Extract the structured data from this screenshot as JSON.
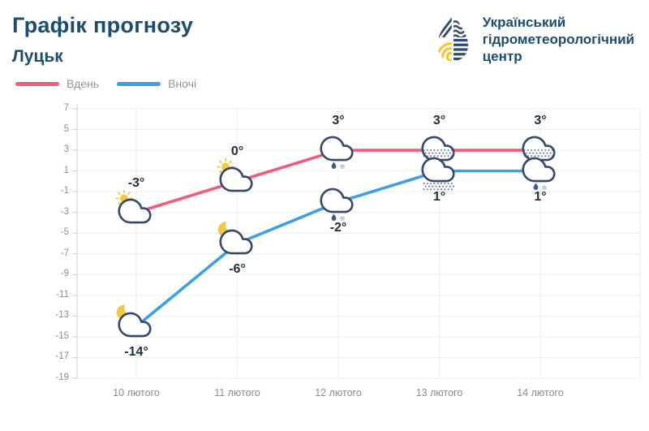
{
  "header": {
    "title": "Графік прогнозу",
    "city": "Луцьк"
  },
  "logo": {
    "org_lines": [
      "Український",
      "гідрометеорологічний",
      "центр"
    ]
  },
  "legend": {
    "items": [
      {
        "label": "Вдень",
        "color": "#f6597e"
      },
      {
        "label": "Вночі",
        "color": "#3d9fe6"
      }
    ]
  },
  "chart_data": {
    "type": "line",
    "title": "Графік прогнозу",
    "subtitle": "Луцьк",
    "categories": [
      "10 лютого",
      "11 лютого",
      "12 лютого",
      "13 лютого",
      "14 лютого"
    ],
    "series": [
      {
        "name": "Вдень",
        "color": "#f6597e",
        "values": [
          -3,
          0,
          3,
          3,
          3
        ],
        "labels": [
          "-3°",
          "0°",
          "3°",
          "3°",
          "3°"
        ],
        "icons": [
          "sun-cloud",
          "sun-cloud",
          "cloud-rain-snow",
          "cloud",
          "cloud"
        ]
      },
      {
        "name": "Вночі",
        "color": "#3d9fe6",
        "values": [
          -14,
          -6,
          -2,
          1,
          1
        ],
        "labels": [
          "-14°",
          "-6°",
          "-2°",
          "1°",
          "1°"
        ],
        "icons": [
          "moon-cloud",
          "moon-cloud",
          "cloud-rain-snow",
          "cloud-snow",
          "cloud-snow-rain"
        ]
      }
    ],
    "ylim": [
      -19,
      7
    ],
    "ytick_step": 2,
    "yticks": [
      7,
      5,
      3,
      1,
      -1,
      -3,
      -5,
      -7,
      -9,
      -11,
      -13,
      -15,
      -17,
      -19
    ],
    "grid": true,
    "legend_position": "top-left"
  }
}
